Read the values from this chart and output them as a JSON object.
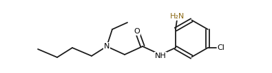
{
  "background_color": "#ffffff",
  "figsize": [
    3.95,
    1.07
  ],
  "dpi": 100,
  "bond_color": "#1a1a1a",
  "bond_lw": 1.3,
  "label_fontsize": 8.0,
  "N_label": "N",
  "O_label": "O",
  "NH_label": "NH",
  "NH2_label": "H₂N",
  "Cl_label": "Cl"
}
